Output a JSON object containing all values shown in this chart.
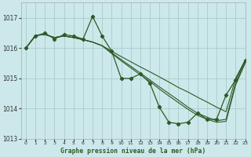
{
  "title": "Graphe pression niveau de la mer (hPa)",
  "bg_color": "#cce8ea",
  "grid_color": "#aacccc",
  "line_color": "#2d5a27",
  "xlim": [
    -0.5,
    23
  ],
  "ylim": [
    1013.0,
    1017.5
  ],
  "yticks": [
    1013,
    1014,
    1015,
    1016,
    1017
  ],
  "xticks": [
    0,
    1,
    2,
    3,
    4,
    5,
    6,
    7,
    8,
    9,
    10,
    11,
    12,
    13,
    14,
    15,
    16,
    17,
    18,
    19,
    20,
    21,
    22,
    23
  ],
  "series_jagged": [
    1016.0,
    1016.4,
    1016.5,
    1016.3,
    1016.45,
    1016.4,
    1016.3,
    1017.05,
    1016.4,
    1015.9,
    1015.0,
    1015.0,
    1015.15,
    1014.85,
    1014.05,
    1013.55,
    1013.5,
    1013.55,
    1013.85,
    1013.65,
    1013.65,
    1014.45,
    1014.95,
    1015.6
  ],
  "series_upper": [
    1016.0,
    1016.42,
    1016.45,
    1016.35,
    1016.4,
    1016.35,
    1016.28,
    1016.2,
    1016.08,
    1015.9,
    1015.72,
    1015.55,
    1015.38,
    1015.22,
    1015.05,
    1014.88,
    1014.7,
    1014.55,
    1014.38,
    1014.22,
    1014.05,
    1013.9,
    1015.0,
    1015.6
  ],
  "series_lower1": [
    1016.0,
    1016.42,
    1016.45,
    1016.35,
    1016.4,
    1016.35,
    1016.28,
    1016.2,
    1016.08,
    1015.85,
    1015.62,
    1015.4,
    1015.18,
    1014.95,
    1014.72,
    1014.5,
    1014.28,
    1014.05,
    1013.85,
    1013.72,
    1013.6,
    1013.65,
    1014.85,
    1015.55
  ],
  "series_lower2": [
    1016.0,
    1016.42,
    1016.45,
    1016.35,
    1016.4,
    1016.35,
    1016.28,
    1016.2,
    1016.08,
    1015.82,
    1015.58,
    1015.35,
    1015.12,
    1014.9,
    1014.65,
    1014.42,
    1014.2,
    1013.98,
    1013.78,
    1013.65,
    1013.55,
    1013.58,
    1014.78,
    1015.5
  ]
}
